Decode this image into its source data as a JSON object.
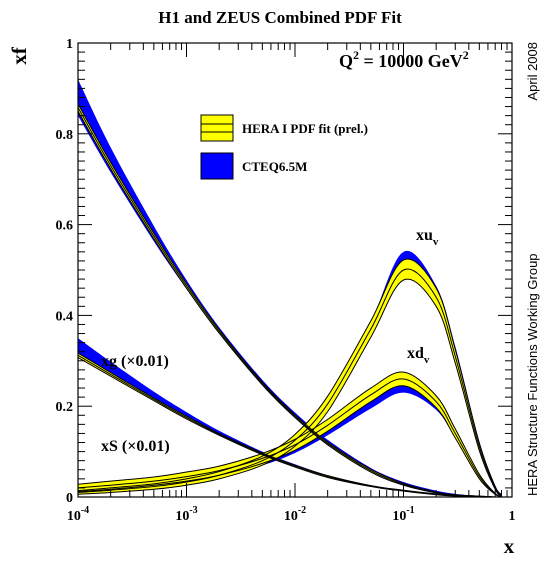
{
  "chart_data": {
    "type": "area",
    "title": "H1 and ZEUS Combined PDF Fit",
    "xlabel": "x",
    "ylabel": "xf",
    "xscale": "log",
    "xlim": [
      0.0001,
      1
    ],
    "ylim": [
      0,
      1
    ],
    "x_ticks": [
      {
        "value": 0.0001,
        "base": "10",
        "exp": "-4"
      },
      {
        "value": 0.001,
        "base": "10",
        "exp": "-3"
      },
      {
        "value": 0.01,
        "base": "10",
        "exp": "-2"
      },
      {
        "value": 0.1,
        "base": "10",
        "exp": "-1"
      },
      {
        "value": 1,
        "base": "1",
        "exp": ""
      }
    ],
    "y_ticks": [
      "0",
      "0.2",
      "0.4",
      "0.6",
      "0.8",
      "1"
    ],
    "annotation": {
      "base": "Q",
      "sup1": "2",
      "mid": " = 10000 GeV",
      "sup2": "2"
    },
    "side_labels": {
      "right_top": "April 2008",
      "right_bottom": "HERA Structure Functions Working Group"
    },
    "legend": {
      "placement": "upper-center",
      "entries": [
        {
          "label": "HERA I PDF fit (prel.)",
          "color": "#ffff00",
          "style": "band-with-lines"
        },
        {
          "label": "CTEQ6.5M",
          "color": "#0000ff",
          "style": "band"
        }
      ]
    },
    "curve_labels": [
      {
        "key": "xuv",
        "main": "xu",
        "sub": "v"
      },
      {
        "key": "xdv",
        "main": "xd",
        "sub": "v"
      },
      {
        "key": "xg",
        "main": "xg (×0.01)",
        "sub": ""
      },
      {
        "key": "xS",
        "main": "xS (×0.01)",
        "sub": ""
      }
    ],
    "x": [
      0.0001,
      0.0002,
      0.0005,
      0.001,
      0.002,
      0.005,
      0.01,
      0.02,
      0.05,
      0.1,
      0.2,
      0.3,
      0.5,
      0.7,
      0.8
    ],
    "series": [
      {
        "key": "xuv",
        "color": "#ffff00",
        "role": "HERA",
        "central": [
          0.01,
          0.015,
          0.023,
          0.033,
          0.048,
          0.08,
          0.125,
          0.205,
          0.37,
          0.5,
          0.44,
          0.31,
          0.11,
          0.02,
          0.004
        ],
        "lower": [
          0.006,
          0.01,
          0.017,
          0.026,
          0.04,
          0.07,
          0.112,
          0.188,
          0.352,
          0.478,
          0.42,
          0.295,
          0.102,
          0.017,
          0.003
        ],
        "upper": [
          0.014,
          0.02,
          0.029,
          0.04,
          0.056,
          0.09,
          0.138,
          0.222,
          0.388,
          0.522,
          0.46,
          0.325,
          0.118,
          0.023,
          0.005
        ]
      },
      {
        "key": "xuv",
        "color": "#0000ff",
        "role": "CTEQ",
        "central": [
          0.011,
          0.016,
          0.024,
          0.034,
          0.049,
          0.081,
          0.126,
          0.206,
          0.372,
          0.505,
          0.45,
          0.32,
          0.115,
          0.022,
          0.005
        ],
        "lower": [
          0.008,
          0.012,
          0.02,
          0.029,
          0.043,
          0.074,
          0.118,
          0.196,
          0.36,
          0.492,
          0.438,
          0.308,
          0.107,
          0.018,
          0.003
        ],
        "upper": [
          0.014,
          0.02,
          0.028,
          0.039,
          0.055,
          0.088,
          0.134,
          0.216,
          0.387,
          0.54,
          0.465,
          0.332,
          0.123,
          0.026,
          0.007
        ]
      },
      {
        "key": "xdv",
        "color": "#ffff00",
        "role": "HERA",
        "central": [
          0.02,
          0.026,
          0.035,
          0.045,
          0.058,
          0.085,
          0.115,
          0.158,
          0.225,
          0.26,
          0.21,
          0.14,
          0.045,
          0.007,
          0.001
        ],
        "lower": [
          0.012,
          0.017,
          0.026,
          0.035,
          0.048,
          0.074,
          0.103,
          0.145,
          0.21,
          0.245,
          0.197,
          0.13,
          0.04,
          0.006,
          0.001
        ],
        "upper": [
          0.028,
          0.035,
          0.044,
          0.055,
          0.068,
          0.096,
          0.127,
          0.171,
          0.24,
          0.275,
          0.223,
          0.15,
          0.05,
          0.008,
          0.002
        ]
      },
      {
        "key": "xdv",
        "color": "#0000ff",
        "role": "CTEQ",
        "central": [
          0.018,
          0.023,
          0.031,
          0.039,
          0.051,
          0.075,
          0.103,
          0.143,
          0.205,
          0.24,
          0.2,
          0.135,
          0.043,
          0.007,
          0.001
        ],
        "lower": [
          0.015,
          0.02,
          0.027,
          0.035,
          0.047,
          0.07,
          0.097,
          0.136,
          0.195,
          0.23,
          0.192,
          0.129,
          0.04,
          0.006,
          0.001
        ],
        "upper": [
          0.021,
          0.027,
          0.035,
          0.043,
          0.055,
          0.08,
          0.109,
          0.15,
          0.215,
          0.252,
          0.208,
          0.141,
          0.046,
          0.008,
          0.002
        ]
      },
      {
        "key": "xg",
        "color": "#ffff00",
        "role": "HERA",
        "central": [
          0.858,
          0.73,
          0.575,
          0.465,
          0.365,
          0.25,
          0.178,
          0.118,
          0.058,
          0.028,
          0.01,
          0.004,
          0.001,
          0.0,
          0.0
        ],
        "lower": [
          0.85,
          0.723,
          0.569,
          0.46,
          0.361,
          0.247,
          0.175,
          0.115,
          0.055,
          0.026,
          0.009,
          0.003,
          0.0,
          0.0,
          0.0
        ],
        "upper": [
          0.866,
          0.737,
          0.581,
          0.47,
          0.369,
          0.253,
          0.181,
          0.121,
          0.061,
          0.03,
          0.011,
          0.005,
          0.002,
          0.0,
          0.0
        ]
      },
      {
        "key": "xg",
        "color": "#0000ff",
        "role": "CTEQ",
        "central": [
          0.88,
          0.742,
          0.58,
          0.468,
          0.367,
          0.252,
          0.18,
          0.12,
          0.059,
          0.029,
          0.011,
          0.005,
          0.001,
          0.0,
          0.0
        ],
        "lower": [
          0.84,
          0.715,
          0.563,
          0.458,
          0.36,
          0.246,
          0.174,
          0.114,
          0.054,
          0.025,
          0.008,
          0.003,
          0.0,
          0.0,
          0.0
        ],
        "upper": [
          0.92,
          0.77,
          0.597,
          0.478,
          0.374,
          0.258,
          0.186,
          0.126,
          0.064,
          0.033,
          0.014,
          0.007,
          0.002,
          0.0,
          0.0
        ]
      },
      {
        "key": "xS",
        "color": "#ffff00",
        "role": "HERA",
        "central": [
          0.312,
          0.27,
          0.215,
          0.175,
          0.138,
          0.095,
          0.068,
          0.045,
          0.024,
          0.014,
          0.006,
          0.003,
          0.001,
          0.0,
          0.0
        ],
        "lower": [
          0.307,
          0.266,
          0.212,
          0.172,
          0.136,
          0.093,
          0.066,
          0.043,
          0.023,
          0.013,
          0.005,
          0.002,
          0.0,
          0.0,
          0.0
        ],
        "upper": [
          0.317,
          0.274,
          0.218,
          0.178,
          0.14,
          0.097,
          0.07,
          0.047,
          0.025,
          0.015,
          0.007,
          0.004,
          0.002,
          0.0,
          0.0
        ]
      },
      {
        "key": "xS",
        "color": "#0000ff",
        "role": "CTEQ",
        "central": [
          0.33,
          0.282,
          0.222,
          0.18,
          0.141,
          0.097,
          0.069,
          0.046,
          0.024,
          0.014,
          0.006,
          0.003,
          0.001,
          0.0,
          0.0
        ],
        "lower": [
          0.31,
          0.268,
          0.213,
          0.174,
          0.137,
          0.094,
          0.067,
          0.044,
          0.023,
          0.013,
          0.005,
          0.002,
          0.0,
          0.0,
          0.0
        ],
        "upper": [
          0.35,
          0.298,
          0.232,
          0.187,
          0.146,
          0.1,
          0.072,
          0.048,
          0.026,
          0.015,
          0.007,
          0.004,
          0.002,
          0.0,
          0.0
        ]
      }
    ]
  }
}
